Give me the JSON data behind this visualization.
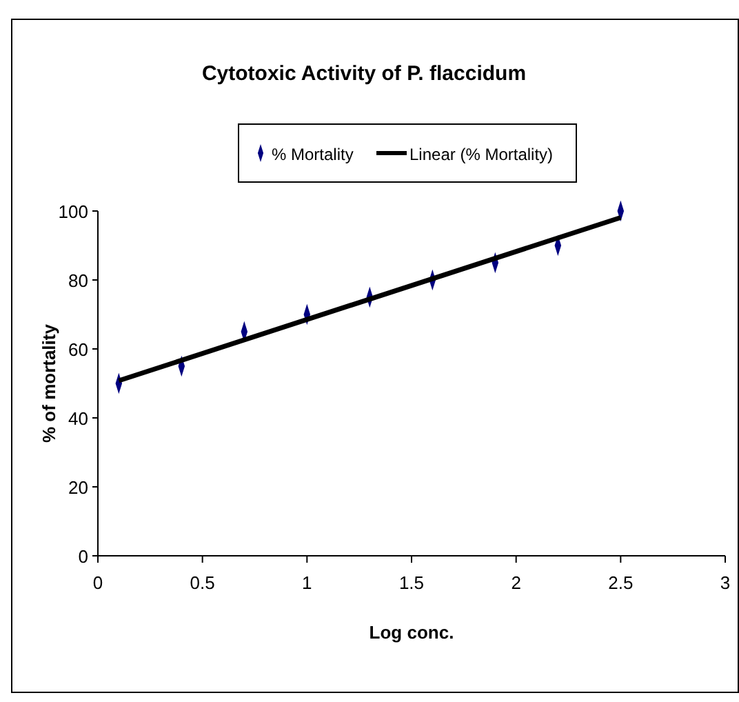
{
  "chart_data": {
    "type": "scatter",
    "title": "Cytotoxic Activity of P. flaccidum",
    "xlabel": "Log conc.",
    "ylabel": "% of mortality",
    "x": [
      0.1,
      0.4,
      0.7,
      1.0,
      1.3,
      1.6,
      1.9,
      2.2,
      2.5
    ],
    "series": [
      {
        "name": "% Mortality",
        "color": "#000080",
        "marker": "diamond",
        "values": [
          50,
          55,
          65,
          70,
          75,
          80,
          85,
          90,
          100
        ]
      },
      {
        "name": "Linear (% Mortality)",
        "type": "line",
        "color": "#000000",
        "x": [
          0.1,
          2.5
        ],
        "values": [
          50.8,
          98.1
        ],
        "line_style": "solid"
      }
    ],
    "xlim": [
      0,
      3
    ],
    "xticks": [
      0,
      0.5,
      1,
      1.5,
      2,
      2.5,
      3
    ],
    "ylim": [
      0,
      100
    ],
    "yticks": [
      0,
      20,
      40,
      60,
      80,
      100
    ],
    "grid": false,
    "legend": "top"
  }
}
